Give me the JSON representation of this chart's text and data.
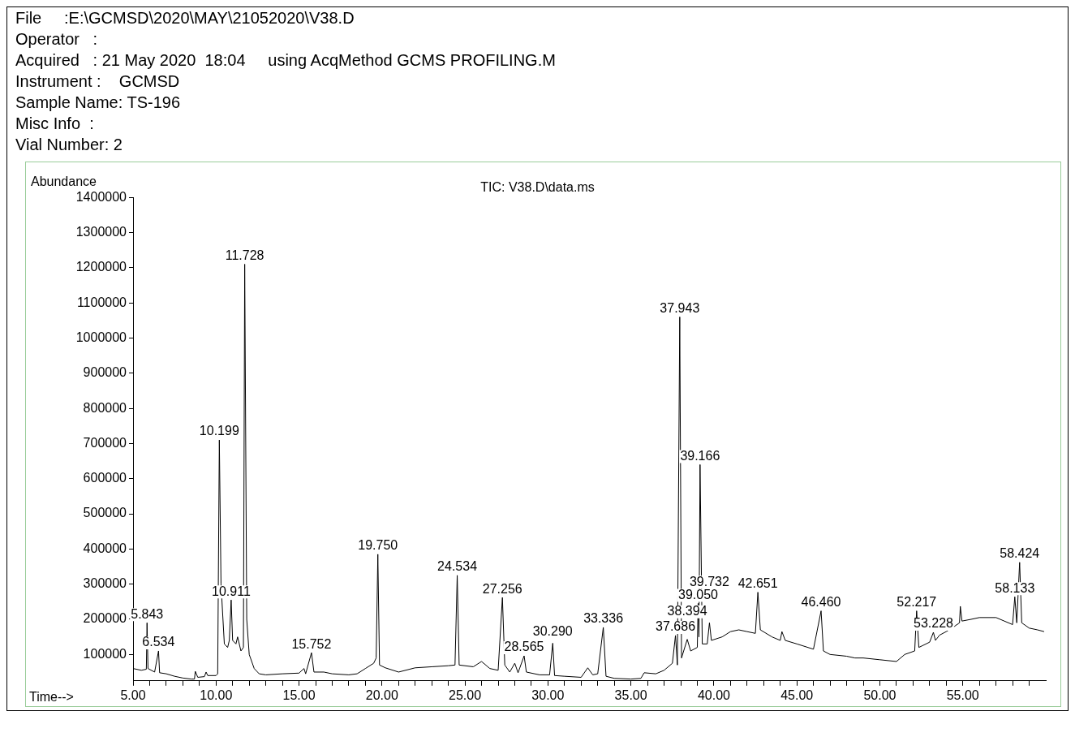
{
  "chart_data": {
    "type": "line",
    "title": "TIC: V38.D\\data.ms",
    "xlabel": "Time-->",
    "ylabel": "Abundance",
    "annotations": [
      "File     :E:\\GCMSD\\2020\\MAY\\21052020\\V38.D",
      "Operator   :",
      "Acquired   : 21 May 2020  18:04     using AcqMethod GCMS PROFILING.M",
      "Instrument :    GCMSD",
      "Sample Name: TS-196",
      "Misc Info  :",
      "Vial Number: 2",
      {
        "text": "5.843",
        "x": 5.843,
        "y": 190000
      },
      {
        "text": "6.534",
        "x": 6.534,
        "y": 110000
      },
      {
        "text": "10.199",
        "x": 10.199,
        "y": 710000
      },
      {
        "text": "10.911",
        "x": 10.911,
        "y": 255000
      },
      {
        "text": "11.728",
        "x": 11.728,
        "y": 1210000
      },
      {
        "text": "15.752",
        "x": 15.752,
        "y": 105000
      },
      {
        "text": "19.750",
        "x": 19.75,
        "y": 385000
      },
      {
        "text": "24.534",
        "x": 24.534,
        "y": 325000
      },
      {
        "text": "27.256",
        "x": 27.256,
        "y": 262000
      },
      {
        "text": "28.565",
        "x": 28.565,
        "y": 96000
      },
      {
        "text": "30.290",
        "x": 30.29,
        "y": 132000
      },
      {
        "text": "33.336",
        "x": 33.336,
        "y": 177000
      },
      {
        "text": "37.686",
        "x": 37.686,
        "y": 154000
      },
      {
        "text": "37.943",
        "x": 37.943,
        "y": 1060000
      },
      {
        "text": "38.394",
        "x": 38.394,
        "y": 143000
      },
      {
        "text": "39.050",
        "x": 39.05,
        "y": 245000
      },
      {
        "text": "39.166",
        "x": 39.166,
        "y": 640000
      },
      {
        "text": "39.732",
        "x": 39.732,
        "y": 190000
      },
      {
        "text": "42.651",
        "x": 42.651,
        "y": 277000
      },
      {
        "text": "46.460",
        "x": 46.46,
        "y": 224000
      },
      {
        "text": "52.217",
        "x": 52.217,
        "y": 224000
      },
      {
        "text": "53.228",
        "x": 53.228,
        "y": 163000
      },
      {
        "text": "58.133",
        "x": 58.133,
        "y": 264000
      },
      {
        "text": "58.424",
        "x": 58.424,
        "y": 362000
      }
    ],
    "x": [
      5.0,
      5.5,
      5.8,
      5.843,
      5.9,
      6.3,
      6.534,
      6.6,
      7.0,
      7.5,
      8.0,
      8.5,
      8.7,
      8.75,
      8.9,
      9.3,
      9.4,
      9.5,
      10.0,
      10.1,
      10.199,
      10.3,
      10.5,
      10.7,
      10.8,
      10.911,
      11.0,
      11.2,
      11.3,
      11.5,
      11.65,
      11.728,
      11.85,
      12.0,
      12.3,
      12.6,
      13,
      14,
      15,
      15.3,
      15.4,
      15.752,
      15.9,
      16.5,
      17,
      18,
      18.5,
      19.0,
      19.5,
      19.65,
      19.75,
      19.85,
      20.2,
      21,
      22,
      23,
      24,
      24.4,
      24.534,
      24.65,
      25.5,
      26,
      26.5,
      27.0,
      27.256,
      27.4,
      27.7,
      28.0,
      28.2,
      28.565,
      28.7,
      29.5,
      30.1,
      30.29,
      30.4,
      31,
      32,
      32.4,
      32.7,
      33.0,
      33.336,
      33.5,
      34,
      35,
      35.6,
      35.8,
      36.5,
      37.0,
      37.5,
      37.686,
      37.8,
      37.943,
      38.05,
      38.394,
      38.6,
      39.0,
      39.05,
      39.1,
      39.166,
      39.3,
      39.6,
      39.732,
      39.85,
      40.5,
      41,
      41.5,
      42.0,
      42.5,
      42.651,
      42.8,
      43.5,
      44,
      44.1,
      44.3,
      45,
      46,
      46.46,
      46.6,
      47,
      48,
      48.5,
      49,
      50,
      51,
      51.5,
      52.1,
      52.217,
      52.35,
      53,
      53.228,
      53.35,
      53.6,
      54,
      54.5,
      54.8,
      54.85,
      54.95,
      55.5,
      56,
      57,
      57.5,
      58.0,
      58.133,
      58.25,
      58.424,
      58.55,
      59,
      59.5,
      59.9
    ],
    "series": [
      {
        "color": "#000000",
        "values": [
          60000,
          55000,
          58000,
          190000,
          60000,
          50000,
          110000,
          48000,
          45000,
          38000,
          33000,
          30000,
          30000,
          52000,
          35000,
          37000,
          50000,
          40000,
          40000,
          45000,
          710000,
          300000,
          130000,
          120000,
          140000,
          255000,
          140000,
          130000,
          150000,
          110000,
          120000,
          1210000,
          200000,
          100000,
          60000,
          45000,
          42000,
          45000,
          47000,
          60000,
          45000,
          105000,
          50000,
          50000,
          45000,
          42000,
          45000,
          60000,
          75000,
          90000,
          385000,
          70000,
          62000,
          50000,
          62000,
          65000,
          68000,
          70000,
          325000,
          70000,
          65000,
          80000,
          60000,
          55000,
          262000,
          70000,
          50000,
          75000,
          48000,
          96000,
          50000,
          42000,
          42000,
          132000,
          40000,
          38000,
          35000,
          62000,
          42000,
          45000,
          177000,
          38000,
          32000,
          30000,
          32000,
          48000,
          45000,
          55000,
          75000,
          154000,
          70000,
          1060000,
          90000,
          143000,
          110000,
          120000,
          245000,
          150000,
          640000,
          130000,
          130000,
          190000,
          140000,
          150000,
          165000,
          170000,
          165000,
          160000,
          277000,
          170000,
          150000,
          140000,
          165000,
          140000,
          130000,
          115000,
          224000,
          110000,
          100000,
          95000,
          90000,
          90000,
          85000,
          80000,
          100000,
          110000,
          224000,
          120000,
          135000,
          163000,
          140000,
          155000,
          165000,
          180000,
          190000,
          237000,
          195000,
          200000,
          205000,
          205000,
          195000,
          185000,
          264000,
          190000,
          362000,
          190000,
          175000,
          170000,
          165000
        ]
      }
    ],
    "xlim": [
      5,
      60
    ],
    "ylim": [
      25000,
      1400000
    ],
    "xticks": [
      {
        "value": 5,
        "label": "5.00"
      },
      {
        "value": 6,
        "label": null
      },
      {
        "value": 7,
        "label": null
      },
      {
        "value": 8,
        "label": null
      },
      {
        "value": 9,
        "label": null
      },
      {
        "value": 10,
        "label": "10.00"
      },
      {
        "value": 11,
        "label": null
      },
      {
        "value": 12,
        "label": null
      },
      {
        "value": 13,
        "label": null
      },
      {
        "value": 14,
        "label": null
      },
      {
        "value": 15,
        "label": "15.00"
      },
      {
        "value": 16,
        "label": null
      },
      {
        "value": 17,
        "label": null
      },
      {
        "value": 18,
        "label": null
      },
      {
        "value": 19,
        "label": null
      },
      {
        "value": 20,
        "label": "20.00"
      },
      {
        "value": 21,
        "label": null
      },
      {
        "value": 22,
        "label": null
      },
      {
        "value": 23,
        "label": null
      },
      {
        "value": 24,
        "label": null
      },
      {
        "value": 25,
        "label": "25.00"
      },
      {
        "value": 26,
        "label": null
      },
      {
        "value": 27,
        "label": null
      },
      {
        "value": 28,
        "label": null
      },
      {
        "value": 29,
        "label": null
      },
      {
        "value": 30,
        "label": "30.00"
      },
      {
        "value": 31,
        "label": null
      },
      {
        "value": 32,
        "label": null
      },
      {
        "value": 33,
        "label": null
      },
      {
        "value": 34,
        "label": null
      },
      {
        "value": 35,
        "label": "35.00"
      },
      {
        "value": 36,
        "label": null
      },
      {
        "value": 37,
        "label": null
      },
      {
        "value": 38,
        "label": null
      },
      {
        "value": 39,
        "label": null
      },
      {
        "value": 40,
        "label": "40.00"
      },
      {
        "value": 41,
        "label": null
      },
      {
        "value": 42,
        "label": null
      },
      {
        "value": 43,
        "label": null
      },
      {
        "value": 44,
        "label": null
      },
      {
        "value": 45,
        "label": "45.00"
      },
      {
        "value": 46,
        "label": null
      },
      {
        "value": 47,
        "label": null
      },
      {
        "value": 48,
        "label": null
      },
      {
        "value": 49,
        "label": null
      },
      {
        "value": 50,
        "label": "50.00"
      },
      {
        "value": 51,
        "label": null
      },
      {
        "value": 52,
        "label": null
      },
      {
        "value": 53,
        "label": null
      },
      {
        "value": 54,
        "label": null
      },
      {
        "value": 55,
        "label": "55.00"
      },
      {
        "value": 56,
        "label": null
      },
      {
        "value": 57,
        "label": null
      },
      {
        "value": 58,
        "label": null
      },
      {
        "value": 59,
        "label": null
      }
    ],
    "yticks": [
      100000,
      200000,
      300000,
      400000,
      500000,
      600000,
      700000,
      800000,
      900000,
      1000000,
      1100000,
      1200000,
      1300000,
      1400000
    ],
    "grid": false,
    "legend": false,
    "marker": "none",
    "line_style": "solid"
  }
}
